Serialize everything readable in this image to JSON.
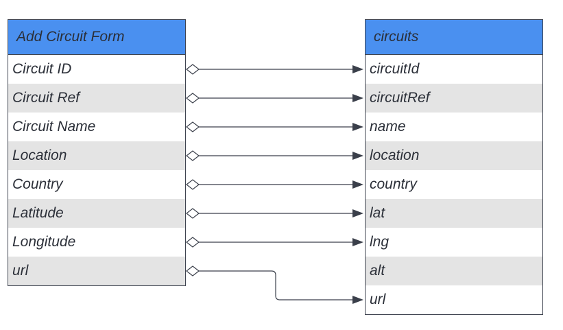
{
  "form_table": {
    "title": "Add Circuit Form",
    "fields": [
      "Circuit ID",
      "Circuit Ref",
      "Circuit Name",
      "Location",
      "Country",
      "Latitude",
      "Longitude",
      "url"
    ]
  },
  "db_table": {
    "title": "circuits",
    "columns": [
      "circuitId",
      "circuitRef",
      "name",
      "location",
      "country",
      "lat",
      "lng",
      "alt",
      "url"
    ]
  },
  "mappings": [
    {
      "from": "Circuit ID",
      "to": "circuitId"
    },
    {
      "from": "Circuit Ref",
      "to": "circuitRef"
    },
    {
      "from": "Circuit Name",
      "to": "name"
    },
    {
      "from": "Location",
      "to": "location"
    },
    {
      "from": "Country",
      "to": "country"
    },
    {
      "from": "Latitude",
      "to": "lat"
    },
    {
      "from": "Longitude",
      "to": "lng"
    },
    {
      "from": "url",
      "to": "url"
    }
  ]
}
